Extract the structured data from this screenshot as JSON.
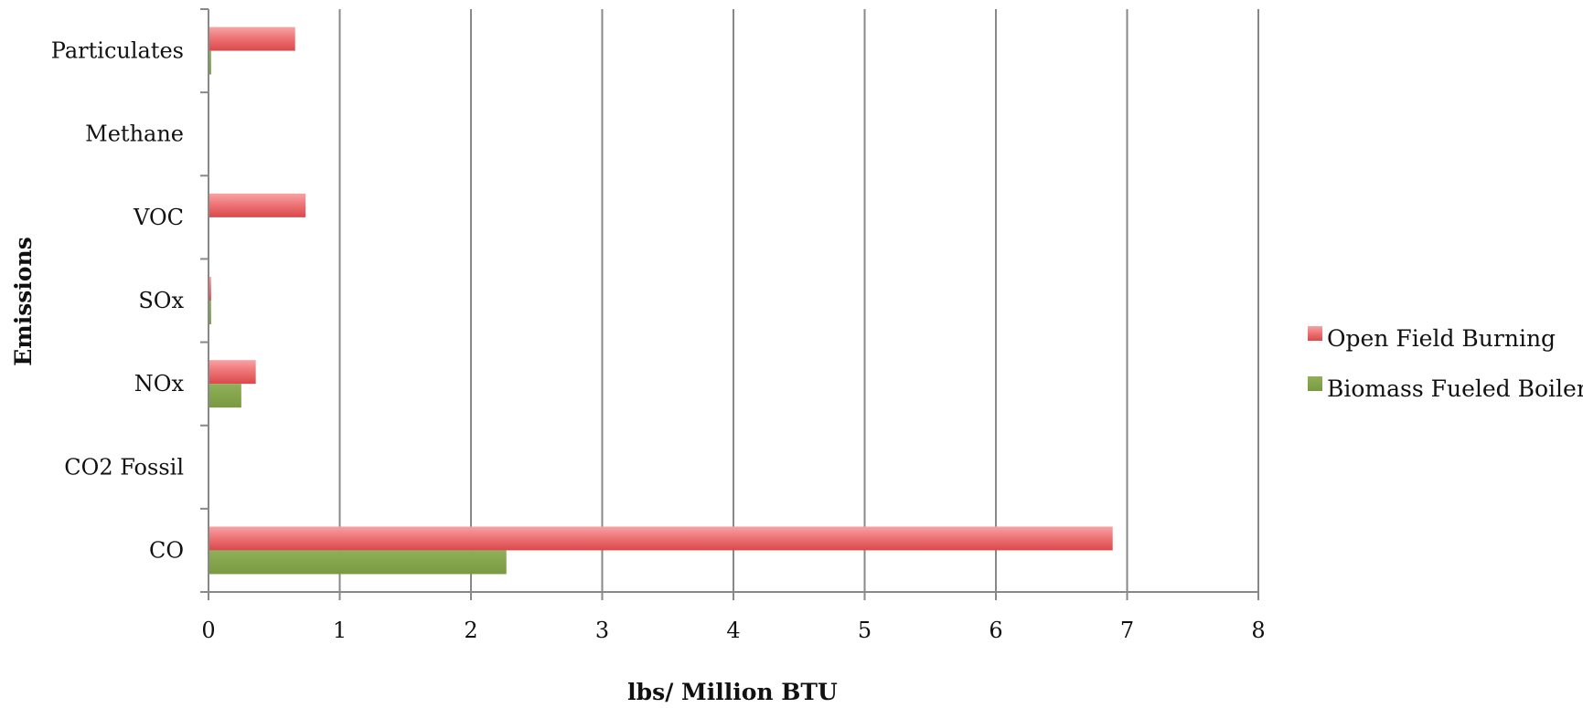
{
  "chart_data": {
    "type": "bar",
    "orientation": "horizontal",
    "categories": [
      "CO",
      "CO2 Fossil",
      "NOx",
      "SOx",
      "VOC",
      "Methane",
      "Particulates"
    ],
    "series": [
      {
        "name": "Open Field Burning",
        "values": [
          6.89,
          0,
          0.36,
          0.02,
          0.74,
          0,
          0.66
        ]
      },
      {
        "name": "Biomass Fueled Boiler",
        "values": [
          2.27,
          0,
          0.25,
          0.02,
          0,
          0,
          0.02
        ]
      }
    ],
    "xlabel": "lbs/ Million BTU",
    "ylabel": "Emissions",
    "xlim": [
      0,
      8
    ],
    "x_ticks": [
      "0",
      "1",
      "2",
      "3",
      "4",
      "5",
      "6",
      "7",
      "8"
    ],
    "grid": "vertical",
    "legend_position": "right",
    "colors": {
      "Open Field Burning": "#e8585c",
      "Biomass Fueled Boiler": "#82a24a",
      "grid": "#888888",
      "axis": "#888888"
    }
  }
}
